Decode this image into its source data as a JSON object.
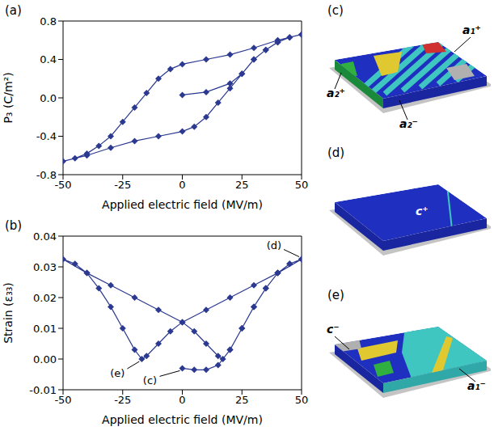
{
  "chart_data": [
    {
      "type": "line",
      "label": "(a)",
      "xlabel": "Applied electric field (MV/m)",
      "ylabel": "P₃ (C/m²)",
      "xlim": [
        -50,
        50
      ],
      "xticks": [
        -50,
        -25,
        0,
        25,
        50
      ],
      "ylim": [
        -0.8,
        0.8
      ],
      "yticks": [
        -0.8,
        -0.4,
        {
          "value": 0,
          "label": "0.0"
        },
        0.4,
        0.8
      ],
      "series": [
        {
          "color": "#2b3990",
          "marker": "diamond",
          "x": [
            0,
            10,
            20,
            25,
            30,
            35,
            40,
            45,
            50,
            40,
            30,
            20,
            10,
            0,
            -5,
            -10,
            -15,
            -20,
            -25,
            -30,
            -35,
            -40,
            -45,
            -50,
            -40,
            -30,
            -20,
            -10,
            0,
            5,
            10,
            15,
            20,
            25,
            30,
            35,
            40,
            45,
            50
          ],
          "values": [
            0.03,
            0.06,
            0.15,
            0.25,
            0.4,
            0.5,
            0.58,
            0.63,
            0.66,
            0.6,
            0.52,
            0.45,
            0.4,
            0.35,
            0.3,
            0.2,
            0.05,
            -0.1,
            -0.25,
            -0.4,
            -0.5,
            -0.58,
            -0.63,
            -0.66,
            -0.6,
            -0.52,
            -0.45,
            -0.4,
            -0.35,
            -0.3,
            -0.2,
            -0.05,
            0.1,
            0.25,
            0.4,
            0.5,
            0.58,
            0.63,
            0.66
          ]
        }
      ]
    },
    {
      "type": "line",
      "label": "(b)",
      "xlabel": "Applied electric field (MV/m)",
      "ylabel": "Strain (ε₃₃)",
      "xlim": [
        -50,
        50
      ],
      "xticks": [
        -50,
        -25,
        0,
        25,
        50
      ],
      "ylim": [
        -0.01,
        0.04
      ],
      "yticks": [
        -0.01,
        {
          "value": 0,
          "label": "0.00"
        },
        0.01,
        0.02,
        0.03,
        0.04
      ],
      "series": [
        {
          "color": "#2b3990",
          "marker": "diamond",
          "x": [
            0,
            5,
            10,
            15,
            20,
            25,
            30,
            35,
            40,
            45,
            50,
            40,
            30,
            20,
            10,
            0,
            -5,
            -10,
            -15,
            -17,
            -20,
            -25,
            -30,
            -35,
            -40,
            -45,
            -50,
            -40,
            -30,
            -20,
            -10,
            0,
            5,
            10,
            15,
            17,
            20,
            25,
            30,
            35,
            40,
            45,
            50
          ],
          "values": [
            -0.003,
            -0.0035,
            -0.0035,
            -0.002,
            0.003,
            0.01,
            0.017,
            0.023,
            0.028,
            0.031,
            0.0325,
            0.028,
            0.024,
            0.02,
            0.016,
            0.012,
            0.009,
            0.005,
            0.001,
            0.0,
            0.003,
            0.01,
            0.017,
            0.023,
            0.028,
            0.031,
            0.0325,
            0.028,
            0.024,
            0.02,
            0.016,
            0.012,
            0.009,
            0.005,
            0.001,
            0.0,
            0.003,
            0.01,
            0.017,
            0.023,
            0.028,
            0.031,
            0.0325
          ]
        }
      ],
      "annotations": [
        {
          "text": "(d)",
          "x": 50,
          "y": 0.0325
        },
        {
          "text": "(e)",
          "x": -17,
          "y": 0.0
        },
        {
          "text": "(c)",
          "x": 0,
          "y": -0.003
        }
      ]
    }
  ],
  "panels": [
    {
      "label": "(c)",
      "domains": [
        "a₁⁺",
        "a₂⁺",
        "a₂⁻"
      ]
    },
    {
      "label": "(d)",
      "domains": [
        "c⁺"
      ]
    },
    {
      "label": "(e)",
      "domains": [
        "c⁻",
        "a₁⁻"
      ]
    }
  ]
}
